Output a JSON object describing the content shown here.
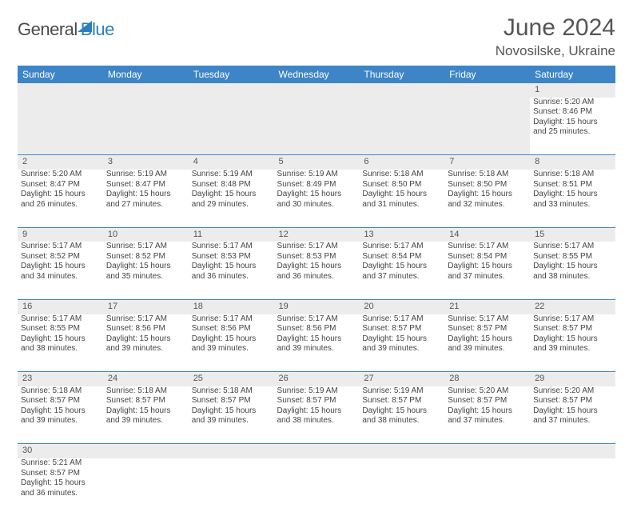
{
  "brand": {
    "part1": "General",
    "part2": "Blue"
  },
  "title": "June 2024",
  "location": "Novosilske, Ukraine",
  "colors": {
    "header_bg": "#3d85c6",
    "header_fg": "#ffffff",
    "daynum_bg": "#ececec",
    "border": "#3d85c6",
    "text": "#444444",
    "brand_gray": "#4a4a4a",
    "brand_blue": "#2a7fbc"
  },
  "day_headers": [
    "Sunday",
    "Monday",
    "Tuesday",
    "Wednesday",
    "Thursday",
    "Friday",
    "Saturday"
  ],
  "weeks": [
    [
      null,
      null,
      null,
      null,
      null,
      null,
      {
        "n": "1",
        "sr": "5:20 AM",
        "ss": "8:46 PM",
        "dl": "15 hours and 25 minutes."
      }
    ],
    [
      {
        "n": "2",
        "sr": "5:20 AM",
        "ss": "8:47 PM",
        "dl": "15 hours and 26 minutes."
      },
      {
        "n": "3",
        "sr": "5:19 AM",
        "ss": "8:47 PM",
        "dl": "15 hours and 27 minutes."
      },
      {
        "n": "4",
        "sr": "5:19 AM",
        "ss": "8:48 PM",
        "dl": "15 hours and 29 minutes."
      },
      {
        "n": "5",
        "sr": "5:19 AM",
        "ss": "8:49 PM",
        "dl": "15 hours and 30 minutes."
      },
      {
        "n": "6",
        "sr": "5:18 AM",
        "ss": "8:50 PM",
        "dl": "15 hours and 31 minutes."
      },
      {
        "n": "7",
        "sr": "5:18 AM",
        "ss": "8:50 PM",
        "dl": "15 hours and 32 minutes."
      },
      {
        "n": "8",
        "sr": "5:18 AM",
        "ss": "8:51 PM",
        "dl": "15 hours and 33 minutes."
      }
    ],
    [
      {
        "n": "9",
        "sr": "5:17 AM",
        "ss": "8:52 PM",
        "dl": "15 hours and 34 minutes."
      },
      {
        "n": "10",
        "sr": "5:17 AM",
        "ss": "8:52 PM",
        "dl": "15 hours and 35 minutes."
      },
      {
        "n": "11",
        "sr": "5:17 AM",
        "ss": "8:53 PM",
        "dl": "15 hours and 36 minutes."
      },
      {
        "n": "12",
        "sr": "5:17 AM",
        "ss": "8:53 PM",
        "dl": "15 hours and 36 minutes."
      },
      {
        "n": "13",
        "sr": "5:17 AM",
        "ss": "8:54 PM",
        "dl": "15 hours and 37 minutes."
      },
      {
        "n": "14",
        "sr": "5:17 AM",
        "ss": "8:54 PM",
        "dl": "15 hours and 37 minutes."
      },
      {
        "n": "15",
        "sr": "5:17 AM",
        "ss": "8:55 PM",
        "dl": "15 hours and 38 minutes."
      }
    ],
    [
      {
        "n": "16",
        "sr": "5:17 AM",
        "ss": "8:55 PM",
        "dl": "15 hours and 38 minutes."
      },
      {
        "n": "17",
        "sr": "5:17 AM",
        "ss": "8:56 PM",
        "dl": "15 hours and 39 minutes."
      },
      {
        "n": "18",
        "sr": "5:17 AM",
        "ss": "8:56 PM",
        "dl": "15 hours and 39 minutes."
      },
      {
        "n": "19",
        "sr": "5:17 AM",
        "ss": "8:56 PM",
        "dl": "15 hours and 39 minutes."
      },
      {
        "n": "20",
        "sr": "5:17 AM",
        "ss": "8:57 PM",
        "dl": "15 hours and 39 minutes."
      },
      {
        "n": "21",
        "sr": "5:17 AM",
        "ss": "8:57 PM",
        "dl": "15 hours and 39 minutes."
      },
      {
        "n": "22",
        "sr": "5:17 AM",
        "ss": "8:57 PM",
        "dl": "15 hours and 39 minutes."
      }
    ],
    [
      {
        "n": "23",
        "sr": "5:18 AM",
        "ss": "8:57 PM",
        "dl": "15 hours and 39 minutes."
      },
      {
        "n": "24",
        "sr": "5:18 AM",
        "ss": "8:57 PM",
        "dl": "15 hours and 39 minutes."
      },
      {
        "n": "25",
        "sr": "5:18 AM",
        "ss": "8:57 PM",
        "dl": "15 hours and 39 minutes."
      },
      {
        "n": "26",
        "sr": "5:19 AM",
        "ss": "8:57 PM",
        "dl": "15 hours and 38 minutes."
      },
      {
        "n": "27",
        "sr": "5:19 AM",
        "ss": "8:57 PM",
        "dl": "15 hours and 38 minutes."
      },
      {
        "n": "28",
        "sr": "5:20 AM",
        "ss": "8:57 PM",
        "dl": "15 hours and 37 minutes."
      },
      {
        "n": "29",
        "sr": "5:20 AM",
        "ss": "8:57 PM",
        "dl": "15 hours and 37 minutes."
      }
    ],
    [
      {
        "n": "30",
        "sr": "5:21 AM",
        "ss": "8:57 PM",
        "dl": "15 hours and 36 minutes."
      },
      null,
      null,
      null,
      null,
      null,
      null
    ]
  ],
  "labels": {
    "sunrise": "Sunrise:",
    "sunset": "Sunset:",
    "daylight": "Daylight:"
  }
}
